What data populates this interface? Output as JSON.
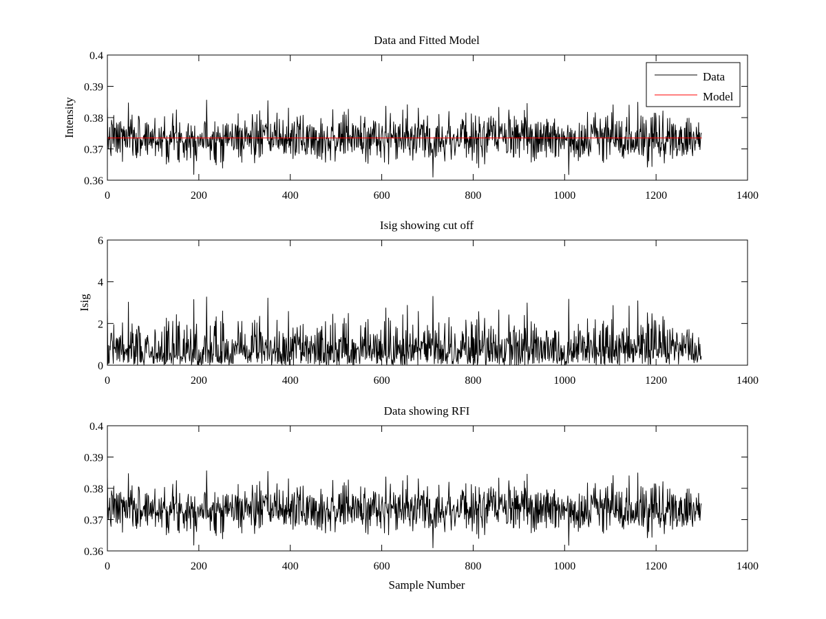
{
  "chart_data": [
    {
      "type": "line",
      "title": "Data and Fitted Model",
      "xlabel": "",
      "ylabel": "Intensity",
      "xlim": [
        0,
        1400
      ],
      "ylim": [
        0.36,
        0.4
      ],
      "xticks": [
        0,
        200,
        400,
        600,
        800,
        1000,
        1200,
        1400
      ],
      "xtick_labels": [
        "0",
        "200",
        "400",
        "600",
        "800",
        "1000",
        "1200",
        "1400"
      ],
      "yticks": [
        0.36,
        0.37,
        0.38,
        0.39,
        0.4
      ],
      "ytick_labels": [
        "0.36",
        "0.37",
        "0.38",
        "0.39",
        "0.4"
      ],
      "legend_position": "top-right",
      "series": [
        {
          "name": "Data",
          "color": "#000000",
          "kind": "noise",
          "n": 1300,
          "seed": 7,
          "base": 0.3735,
          "std": 0.0037,
          "clip": [
            0.361,
            0.3865
          ]
        },
        {
          "name": "Model",
          "color": "#ff0000",
          "kind": "constant",
          "x": [
            0,
            1300
          ],
          "value": 0.3735
        }
      ]
    },
    {
      "type": "line",
      "title": "Isig showing cut off",
      "xlabel": "",
      "ylabel": "Isig",
      "xlim": [
        0,
        1400
      ],
      "ylim": [
        0,
        6
      ],
      "xticks": [
        0,
        200,
        400,
        600,
        800,
        1000,
        1200,
        1400
      ],
      "xtick_labels": [
        "0",
        "200",
        "400",
        "600",
        "800",
        "1000",
        "1200",
        "1400"
      ],
      "yticks": [
        0,
        2,
        4,
        6
      ],
      "ytick_labels": [
        "0",
        "2",
        "4",
        "6"
      ],
      "series": [
        {
          "name": "Isig",
          "color": "#000000",
          "kind": "isig",
          "n": 1300,
          "source_seed": 7,
          "base": 0.3735,
          "scale": 0.0037,
          "max": 3.3
        }
      ]
    },
    {
      "type": "line",
      "title": "Data showing RFI",
      "xlabel": "Sample Number",
      "ylabel": "",
      "xlim": [
        0,
        1400
      ],
      "ylim": [
        0.36,
        0.4
      ],
      "xticks": [
        0,
        200,
        400,
        600,
        800,
        1000,
        1200,
        1400
      ],
      "xtick_labels": [
        "0",
        "200",
        "400",
        "600",
        "800",
        "1000",
        "1200",
        "1400"
      ],
      "yticks": [
        0.36,
        0.37,
        0.38,
        0.39,
        0.4
      ],
      "ytick_labels": [
        "0.36",
        "0.37",
        "0.38",
        "0.39",
        "0.4"
      ],
      "series": [
        {
          "name": "Data",
          "color": "#000000",
          "kind": "noise",
          "n": 1300,
          "seed": 7,
          "base": 0.3735,
          "std": 0.0037,
          "clip": [
            0.361,
            0.3865
          ]
        }
      ]
    }
  ]
}
